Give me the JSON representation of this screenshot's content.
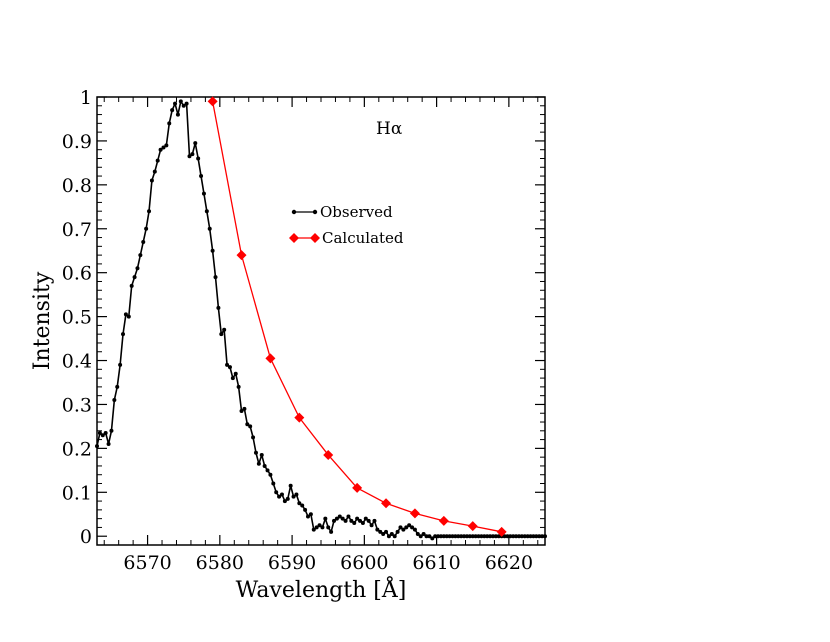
{
  "chart_data": {
    "type": "line",
    "title": "",
    "annotation": "Hα",
    "xlabel": "Wavelength [Å]",
    "ylabel": "Intensity",
    "xlim": [
      6563,
      6625
    ],
    "ylim": [
      -0.02,
      1.0
    ],
    "xticks": [
      6570,
      6580,
      6590,
      6600,
      6610,
      6620
    ],
    "yticks": [
      0,
      0.1,
      0.2,
      0.3,
      0.4,
      0.5,
      0.6,
      0.7,
      0.8,
      0.9,
      1
    ],
    "xtick_labels": [
      "6570",
      "6580",
      "6590",
      "6600",
      "6610",
      "6620"
    ],
    "ytick_labels": [
      "0",
      "0.1",
      "0.2",
      "0.3",
      "0.4",
      "0.5",
      "0.6",
      "0.7",
      "0.8",
      "0.9",
      "1"
    ],
    "legend_position": "upper-middle",
    "grid": false,
    "series": [
      {
        "name": "Observed",
        "color": "#000000",
        "marker": "circle",
        "x": [
          6563.0,
          6563.4,
          6563.8,
          6564.2,
          6564.6,
          6565.0,
          6565.4,
          6565.8,
          6566.2,
          6566.6,
          6567.0,
          6567.4,
          6567.8,
          6568.2,
          6568.6,
          6569.0,
          6569.4,
          6569.8,
          6570.2,
          6570.6,
          6571.0,
          6571.4,
          6571.8,
          6572.2,
          6572.6,
          6573.0,
          6573.4,
          6573.8,
          6574.2,
          6574.6,
          6575.0,
          6575.4,
          6575.8,
          6576.2,
          6576.6,
          6577.0,
          6577.4,
          6577.8,
          6578.2,
          6578.6,
          6579.0,
          6579.4,
          6579.8,
          6580.2,
          6580.6,
          6581.0,
          6581.4,
          6581.8,
          6582.2,
          6582.6,
          6583.0,
          6583.4,
          6583.8,
          6584.2,
          6584.6,
          6585.0,
          6585.4,
          6585.8,
          6586.2,
          6586.6,
          6587.0,
          6587.4,
          6587.8,
          6588.2,
          6588.6,
          6589.0,
          6589.4,
          6589.8,
          6590.2,
          6590.6,
          6591.0,
          6591.4,
          6591.8,
          6592.2,
          6592.6,
          6593.0,
          6593.4,
          6593.8,
          6594.2,
          6594.6,
          6595.0,
          6595.4,
          6595.8,
          6596.2,
          6596.6,
          6597.0,
          6597.4,
          6597.8,
          6598.2,
          6598.6,
          6599.0,
          6599.4,
          6599.8,
          6600.2,
          6600.6,
          6601.0,
          6601.4,
          6601.8,
          6602.2,
          6602.6,
          6603.0,
          6603.4,
          6603.8,
          6604.2,
          6604.6,
          6605.0,
          6605.4,
          6605.8,
          6606.2,
          6606.6,
          6607.0,
          6607.4,
          6607.8,
          6608.2,
          6608.6,
          6609.0,
          6609.4,
          6609.8,
          6610.2,
          6610.6,
          6611.0,
          6611.4,
          6611.8,
          6612.2,
          6612.6,
          6613.0,
          6613.4,
          6613.8,
          6614.2,
          6614.6,
          6615.0,
          6615.4,
          6615.8,
          6616.2,
          6616.6,
          6617.0,
          6617.4,
          6617.8,
          6618.2,
          6618.6,
          6619.0,
          6619.4,
          6619.8,
          6620.2,
          6620.6,
          6621.0,
          6621.4,
          6621.8,
          6622.2,
          6622.6,
          6623.0,
          6623.4,
          6623.8,
          6624.2,
          6624.6,
          6625.0
        ],
        "y": [
          0.205,
          0.235,
          0.23,
          0.235,
          0.21,
          0.24,
          0.31,
          0.34,
          0.39,
          0.46,
          0.505,
          0.5,
          0.57,
          0.59,
          0.61,
          0.64,
          0.67,
          0.7,
          0.74,
          0.81,
          0.83,
          0.855,
          0.88,
          0.885,
          0.89,
          0.94,
          0.97,
          0.985,
          0.96,
          0.99,
          0.98,
          0.985,
          0.865,
          0.87,
          0.895,
          0.86,
          0.82,
          0.78,
          0.74,
          0.7,
          0.65,
          0.59,
          0.52,
          0.46,
          0.47,
          0.39,
          0.385,
          0.36,
          0.37,
          0.34,
          0.285,
          0.29,
          0.255,
          0.25,
          0.225,
          0.19,
          0.165,
          0.185,
          0.16,
          0.15,
          0.14,
          0.12,
          0.1,
          0.09,
          0.095,
          0.08,
          0.085,
          0.115,
          0.09,
          0.095,
          0.075,
          0.07,
          0.06,
          0.045,
          0.05,
          0.015,
          0.02,
          0.025,
          0.02,
          0.04,
          0.02,
          0.01,
          0.035,
          0.04,
          0.045,
          0.04,
          0.035,
          0.045,
          0.035,
          0.03,
          0.04,
          0.035,
          0.03,
          0.04,
          0.035,
          0.025,
          0.035,
          0.015,
          0.01,
          0.005,
          0.01,
          0.0,
          0.005,
          0.0,
          0.01,
          0.02,
          0.015,
          0.02,
          0.025,
          0.02,
          0.015,
          0.005,
          0.0,
          0.005,
          0.0,
          0.0,
          -0.005,
          0.0,
          0.0,
          0.0,
          0.0,
          0.0,
          0.0,
          0.0,
          0.0,
          0.0,
          0.0,
          0.0,
          0.0,
          0.0,
          0.0,
          0.0,
          0.0,
          0.0,
          0.0,
          0.0,
          0.0,
          0.0,
          0.0,
          0.0,
          0.0,
          0.0,
          0.0,
          0.0,
          0.0,
          0.0,
          0.0,
          0.0,
          0.0,
          0.0,
          0.0,
          0.0,
          0.0,
          0.0,
          0.0,
          0.0
        ]
      },
      {
        "name": "Calculated",
        "color": "#ff0000",
        "marker": "diamond",
        "x": [
          6579,
          6583,
          6587,
          6591,
          6595,
          6599,
          6603,
          6607,
          6611,
          6615,
          6619
        ],
        "y": [
          0.99,
          0.64,
          0.405,
          0.27,
          0.185,
          0.11,
          0.075,
          0.052,
          0.035,
          0.023,
          0.01
        ]
      }
    ]
  }
}
